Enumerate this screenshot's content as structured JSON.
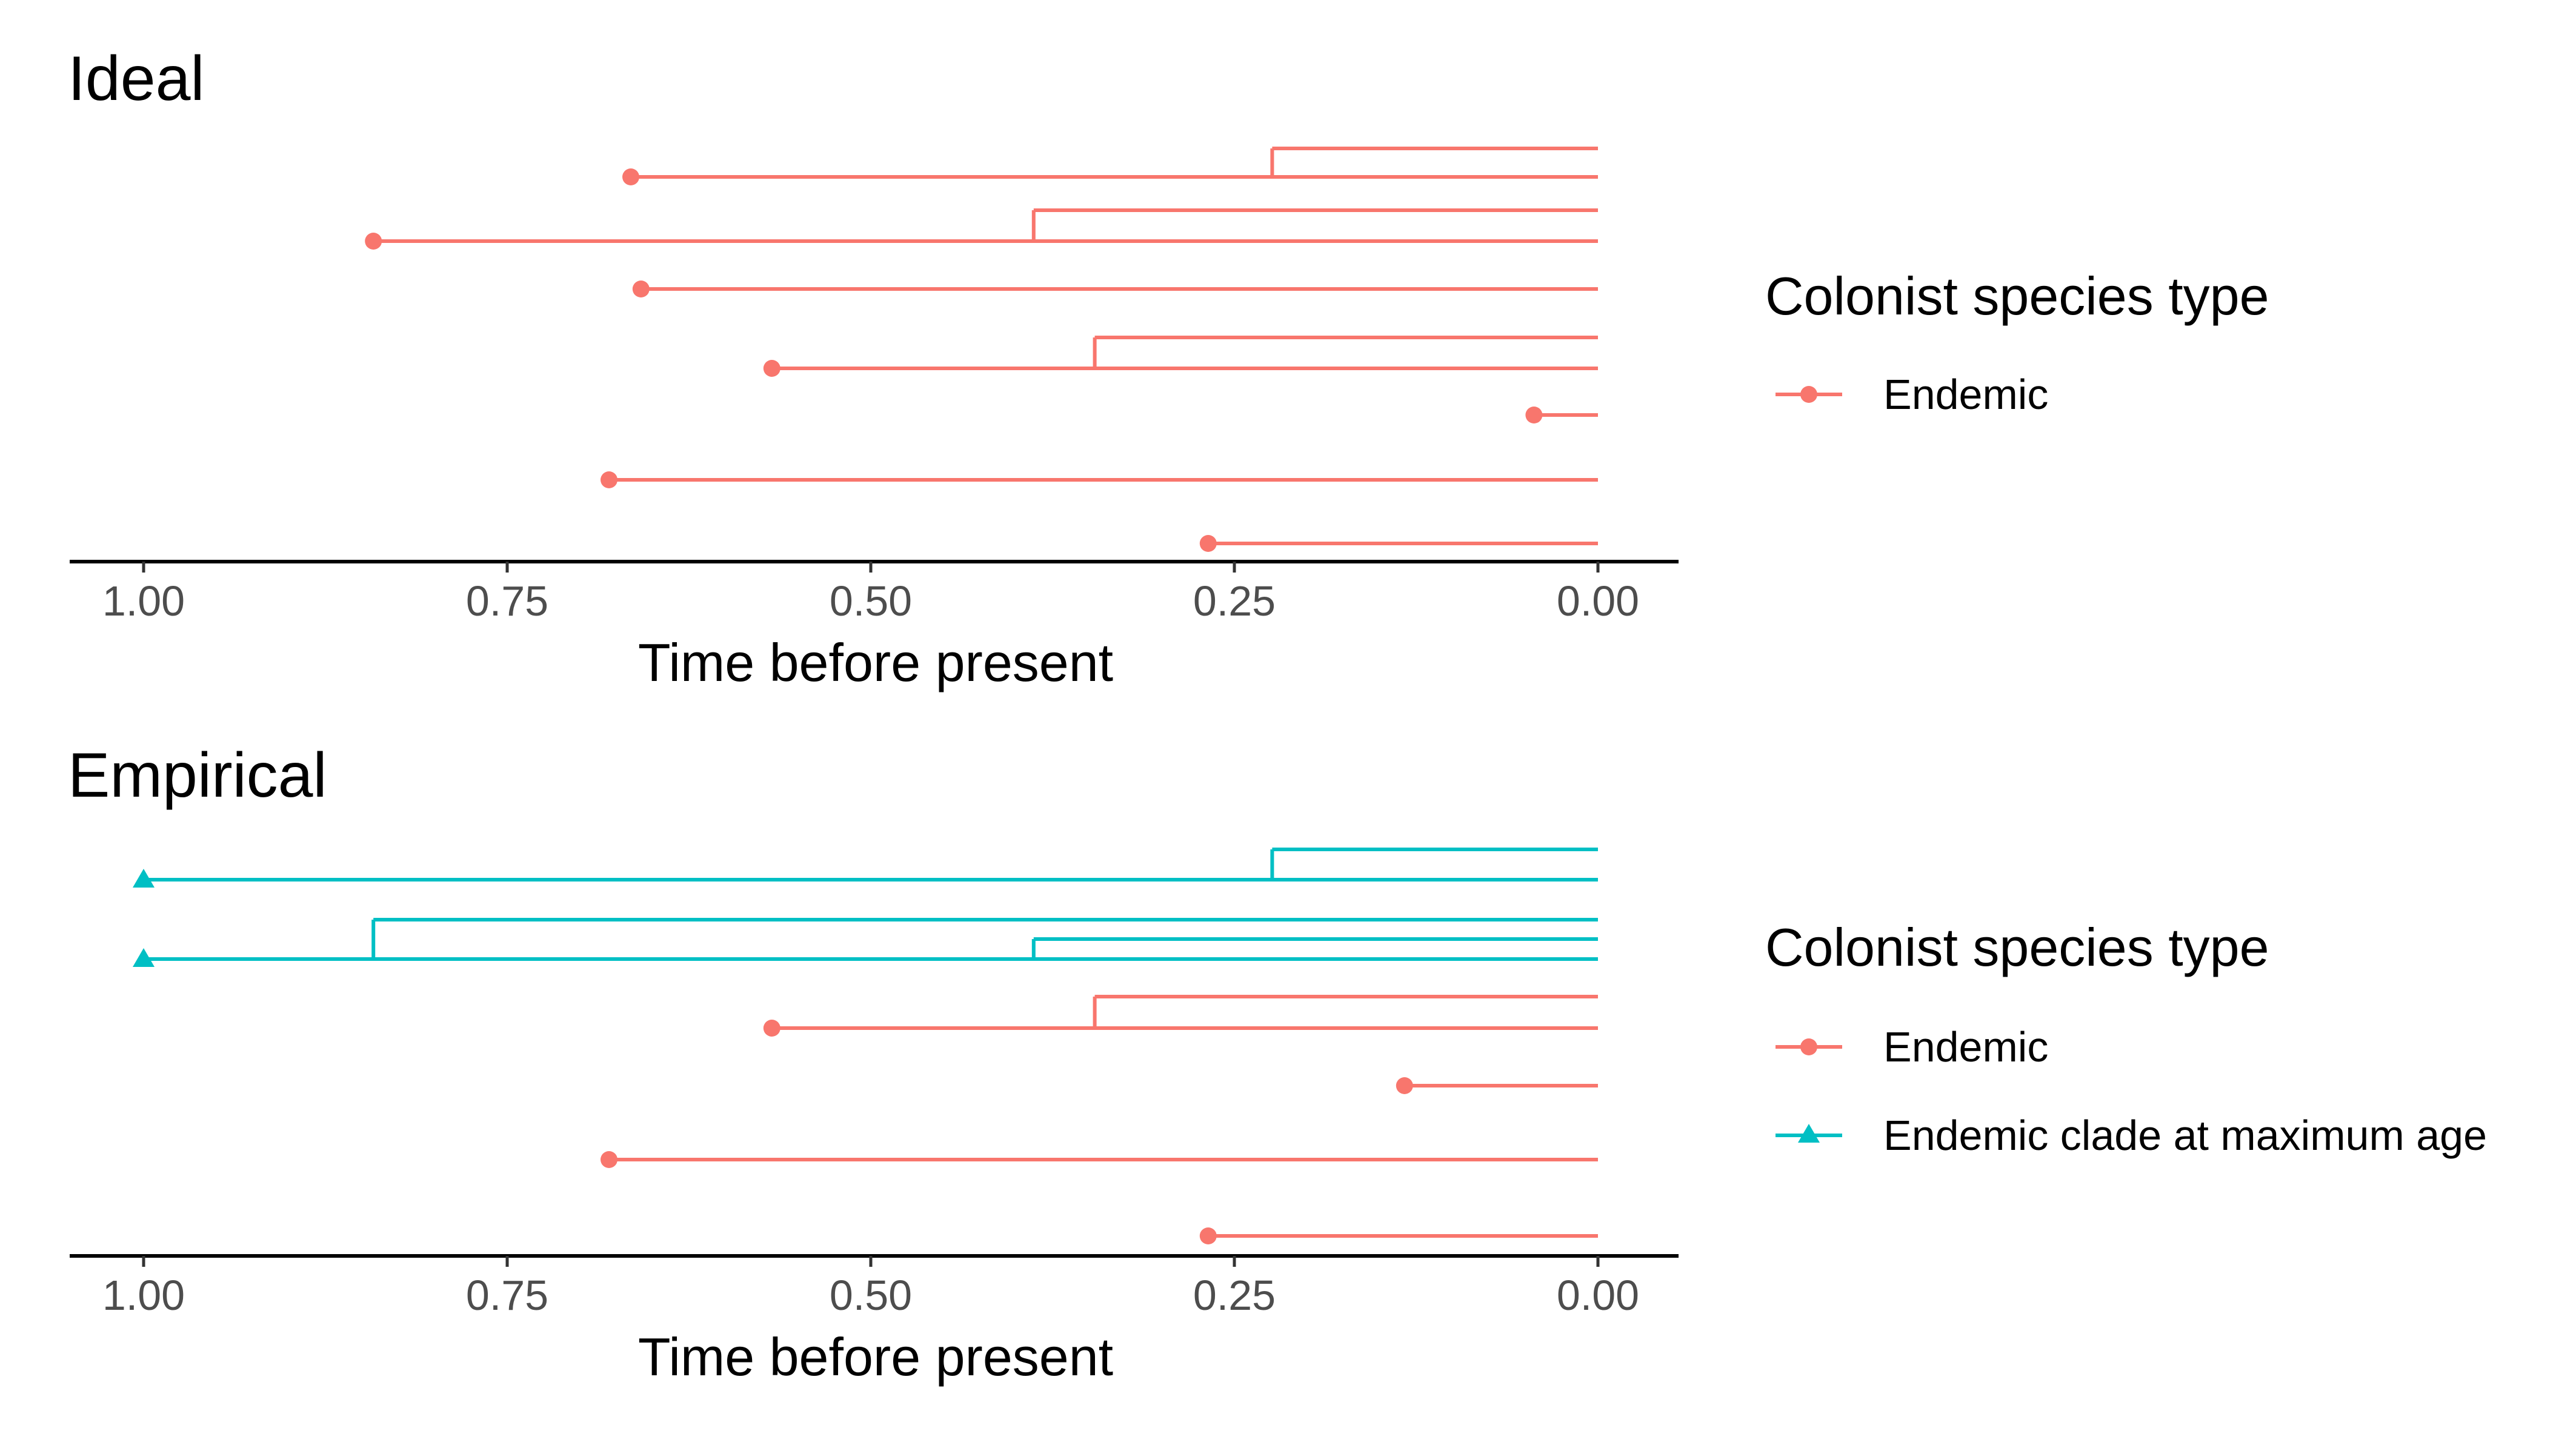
{
  "colors": {
    "Endemic": "#F8766D",
    "Endemic clade at maximum age": "#00BFC4"
  },
  "chart_data": [
    {
      "type": "line",
      "title": "Ideal",
      "xlabel": "Time before present",
      "xlim": [
        1.0,
        0.0
      ],
      "x_ticks": [
        "1.00",
        "0.75",
        "0.50",
        "0.25",
        "0.00"
      ],
      "x_tick_values": [
        1.0,
        0.75,
        0.5,
        0.25,
        0.0
      ],
      "grid": false,
      "legend": {
        "title": "Colonist species type",
        "placement": "right",
        "entries": [
          {
            "label": "Endemic",
            "marker": "circle"
          }
        ]
      },
      "clades": [
        {
          "type": "Endemic",
          "colonisation_time": 0.665,
          "lineages": [
            {
              "start": 0.224,
              "end": 0.0
            }
          ],
          "marker": "circle"
        },
        {
          "type": "Endemic",
          "colonisation_time": 0.842,
          "lineages": [
            {
              "start": 0.388,
              "end": 0.0
            }
          ],
          "marker": "circle"
        },
        {
          "type": "Endemic",
          "colonisation_time": 0.658,
          "lineages": [],
          "marker": "circle"
        },
        {
          "type": "Endemic",
          "colonisation_time": 0.568,
          "lineages": [
            {
              "start": 0.346,
              "end": 0.0
            }
          ],
          "marker": "circle"
        },
        {
          "type": "Endemic",
          "colonisation_time": 0.044,
          "lineages": [],
          "marker": "circle"
        },
        {
          "type": "Endemic",
          "colonisation_time": 0.68,
          "lineages": [],
          "marker": "circle"
        },
        {
          "type": "Endemic",
          "colonisation_time": 0.268,
          "lineages": [],
          "marker": "circle"
        }
      ]
    },
    {
      "type": "line",
      "title": "Empirical",
      "xlabel": "Time before present",
      "xlim": [
        1.0,
        0.0
      ],
      "x_ticks": [
        "1.00",
        "0.75",
        "0.50",
        "0.25",
        "0.00"
      ],
      "x_tick_values": [
        1.0,
        0.75,
        0.5,
        0.25,
        0.0
      ],
      "grid": false,
      "legend": {
        "title": "Colonist species type",
        "placement": "right",
        "entries": [
          {
            "label": "Endemic",
            "marker": "circle"
          },
          {
            "label": "Endemic clade at maximum age",
            "marker": "triangle"
          }
        ]
      },
      "clades": [
        {
          "type": "Endemic clade at maximum age",
          "colonisation_time": 1.0,
          "lineages": [
            {
              "start": 0.224,
              "end": 0.0
            }
          ],
          "marker": "triangle"
        },
        {
          "type": "Endemic clade at maximum age",
          "colonisation_time": 1.0,
          "lineages": [
            {
              "start": 0.842,
              "end": 0.0
            },
            {
              "start": 0.388,
              "end": 0.0
            }
          ],
          "marker": "triangle"
        },
        {
          "type": "Endemic",
          "colonisation_time": 0.568,
          "lineages": [
            {
              "start": 0.346,
              "end": 0.0
            }
          ],
          "marker": "circle"
        },
        {
          "type": "Endemic",
          "colonisation_time": 0.133,
          "lineages": [],
          "marker": "circle"
        },
        {
          "type": "Endemic",
          "colonisation_time": 0.68,
          "lineages": [],
          "marker": "circle"
        },
        {
          "type": "Endemic",
          "colonisation_time": 0.268,
          "lineages": [],
          "marker": "circle"
        }
      ]
    }
  ]
}
